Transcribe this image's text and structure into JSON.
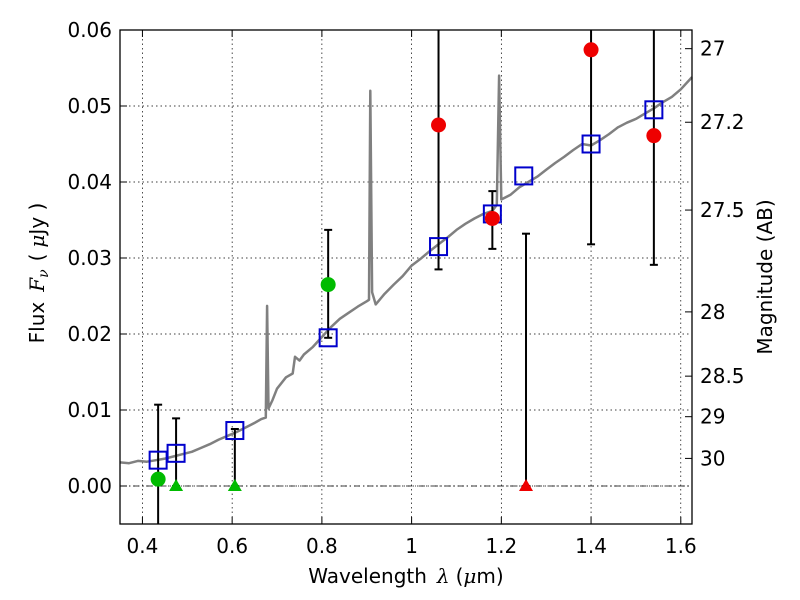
{
  "chart_data": {
    "type": "scatter",
    "xlabel_text": "Wavelength",
    "xlabel_symbol": "λ",
    "xlabel_unit_open": "(",
    "xlabel_unit_mu": "μ",
    "xlabel_unit_rest": "m)",
    "ylabel_text": "Flux",
    "ylabel_symbol_main": "F",
    "ylabel_symbol_sub": "ν",
    "ylabel_unit_open": "(",
    "ylabel_unit_mu": "μ",
    "ylabel_unit_rest": "Jy )",
    "y2label": "Magnitude (AB)",
    "xlim": [
      0.35,
      1.625
    ],
    "ylim": [
      -0.005,
      0.06
    ],
    "grid": true,
    "x_ticks": [
      {
        "value": 0.4,
        "label": "0.4"
      },
      {
        "value": 0.6,
        "label": "0.6"
      },
      {
        "value": 0.8,
        "label": "0.8"
      },
      {
        "value": 1.0,
        "label": "1"
      },
      {
        "value": 1.2,
        "label": "1.2"
      },
      {
        "value": 1.4,
        "label": "1.4"
      },
      {
        "value": 1.6,
        "label": "1.6"
      }
    ],
    "y_ticks": [
      {
        "value": 0.0,
        "label": "0.00"
      },
      {
        "value": 0.01,
        "label": "0.01"
      },
      {
        "value": 0.02,
        "label": "0.02"
      },
      {
        "value": 0.03,
        "label": "0.03"
      },
      {
        "value": 0.04,
        "label": "0.04"
      },
      {
        "value": 0.05,
        "label": "0.05"
      },
      {
        "value": 0.06,
        "label": "0.06"
      }
    ],
    "mag_ticks": [
      {
        "value": 27,
        "label": "27"
      },
      {
        "value": 27.2,
        "label": "27.2"
      },
      {
        "value": 27.5,
        "label": "27.5"
      },
      {
        "value": 28,
        "label": "28"
      },
      {
        "value": 28.5,
        "label": "28.5"
      },
      {
        "value": 29,
        "label": "29"
      },
      {
        "value": 30,
        "label": "30"
      }
    ],
    "colors": {
      "model": "#808080",
      "model_phot": "#0000cc",
      "detected": "#ee0000",
      "optical": "#00bb00",
      "errorbar": "#000000"
    },
    "model_spectrum": [
      [
        0.35,
        0.0031
      ],
      [
        0.37,
        0.003
      ],
      [
        0.39,
        0.0033
      ],
      [
        0.41,
        0.0032
      ],
      [
        0.43,
        0.0034
      ],
      [
        0.45,
        0.0036
      ],
      [
        0.47,
        0.0039
      ],
      [
        0.49,
        0.0042
      ],
      [
        0.51,
        0.0045
      ],
      [
        0.53,
        0.005
      ],
      [
        0.55,
        0.0055
      ],
      [
        0.57,
        0.0061
      ],
      [
        0.59,
        0.0066
      ],
      [
        0.61,
        0.0071
      ],
      [
        0.63,
        0.0077
      ],
      [
        0.65,
        0.0083
      ],
      [
        0.665,
        0.0088
      ],
      [
        0.675,
        0.009
      ],
      [
        0.678,
        0.0237
      ],
      [
        0.681,
        0.0102
      ],
      [
        0.69,
        0.0113
      ],
      [
        0.7,
        0.0128
      ],
      [
        0.72,
        0.0143
      ],
      [
        0.735,
        0.0148
      ],
      [
        0.74,
        0.017
      ],
      [
        0.75,
        0.0165
      ],
      [
        0.76,
        0.0173
      ],
      [
        0.78,
        0.0183
      ],
      [
        0.8,
        0.0196
      ],
      [
        0.82,
        0.0209
      ],
      [
        0.84,
        0.022
      ],
      [
        0.86,
        0.0228
      ],
      [
        0.88,
        0.0236
      ],
      [
        0.9,
        0.0243
      ],
      [
        0.905,
        0.0245
      ],
      [
        0.908,
        0.052
      ],
      [
        0.912,
        0.0255
      ],
      [
        0.92,
        0.0239
      ],
      [
        0.94,
        0.0253
      ],
      [
        0.96,
        0.0265
      ],
      [
        0.98,
        0.0276
      ],
      [
        1.0,
        0.029
      ],
      [
        1.02,
        0.0299
      ],
      [
        1.04,
        0.0309
      ],
      [
        1.06,
        0.0318
      ],
      [
        1.08,
        0.0327
      ],
      [
        1.1,
        0.0337
      ],
      [
        1.12,
        0.0345
      ],
      [
        1.14,
        0.0352
      ],
      [
        1.16,
        0.0358
      ],
      [
        1.18,
        0.0362
      ],
      [
        1.19,
        0.037
      ],
      [
        1.195,
        0.054
      ],
      [
        1.2,
        0.0377
      ],
      [
        1.22,
        0.0383
      ],
      [
        1.24,
        0.0393
      ],
      [
        1.26,
        0.04
      ],
      [
        1.28,
        0.0407
      ],
      [
        1.3,
        0.0416
      ],
      [
        1.32,
        0.0425
      ],
      [
        1.34,
        0.0433
      ],
      [
        1.36,
        0.0442
      ],
      [
        1.38,
        0.045
      ],
      [
        1.4,
        0.0448
      ],
      [
        1.42,
        0.0455
      ],
      [
        1.44,
        0.0463
      ],
      [
        1.46,
        0.0472
      ],
      [
        1.48,
        0.0478
      ],
      [
        1.5,
        0.0483
      ],
      [
        1.52,
        0.049
      ],
      [
        1.54,
        0.0497
      ],
      [
        1.56,
        0.0505
      ],
      [
        1.58,
        0.0512
      ],
      [
        1.6,
        0.0522
      ],
      [
        1.625,
        0.0538
      ]
    ],
    "model_photometry": [
      {
        "x": 0.435,
        "y": 0.0034
      },
      {
        "x": 0.475,
        "y": 0.0043
      },
      {
        "x": 0.606,
        "y": 0.0073
      },
      {
        "x": 0.814,
        "y": 0.0195
      },
      {
        "x": 1.06,
        "y": 0.0315
      },
      {
        "x": 1.18,
        "y": 0.0358
      },
      {
        "x": 1.25,
        "y": 0.0408
      },
      {
        "x": 1.4,
        "y": 0.045
      },
      {
        "x": 1.54,
        "y": 0.0495
      }
    ],
    "detected_points": [
      {
        "x": 1.06,
        "y": 0.0475,
        "err_low": 0.0285,
        "err_high": 0.06
      },
      {
        "x": 1.18,
        "y": 0.0352,
        "err_low": 0.0312,
        "err_high": 0.0388
      },
      {
        "x": 1.4,
        "y": 0.0574,
        "err_low": 0.0318,
        "err_high": 0.06
      },
      {
        "x": 1.54,
        "y": 0.0461,
        "err_low": 0.0291,
        "err_high": 0.06
      }
    ],
    "optical_points": [
      {
        "x": 0.435,
        "y": 0.0009,
        "err_low": -0.005,
        "err_high": 0.0107
      },
      {
        "x": 0.814,
        "y": 0.0265,
        "err_low": 0.0195,
        "err_high": 0.0337
      }
    ],
    "optical_upper_limits": [
      {
        "x": 0.475,
        "y": 0.0,
        "err_high": 0.0089
      },
      {
        "x": 0.606,
        "y": 0.0,
        "err_high": 0.0075
      }
    ],
    "nir_upper_limits": [
      {
        "x": 1.255,
        "y": 0.0,
        "err_high": 0.0332
      }
    ]
  }
}
